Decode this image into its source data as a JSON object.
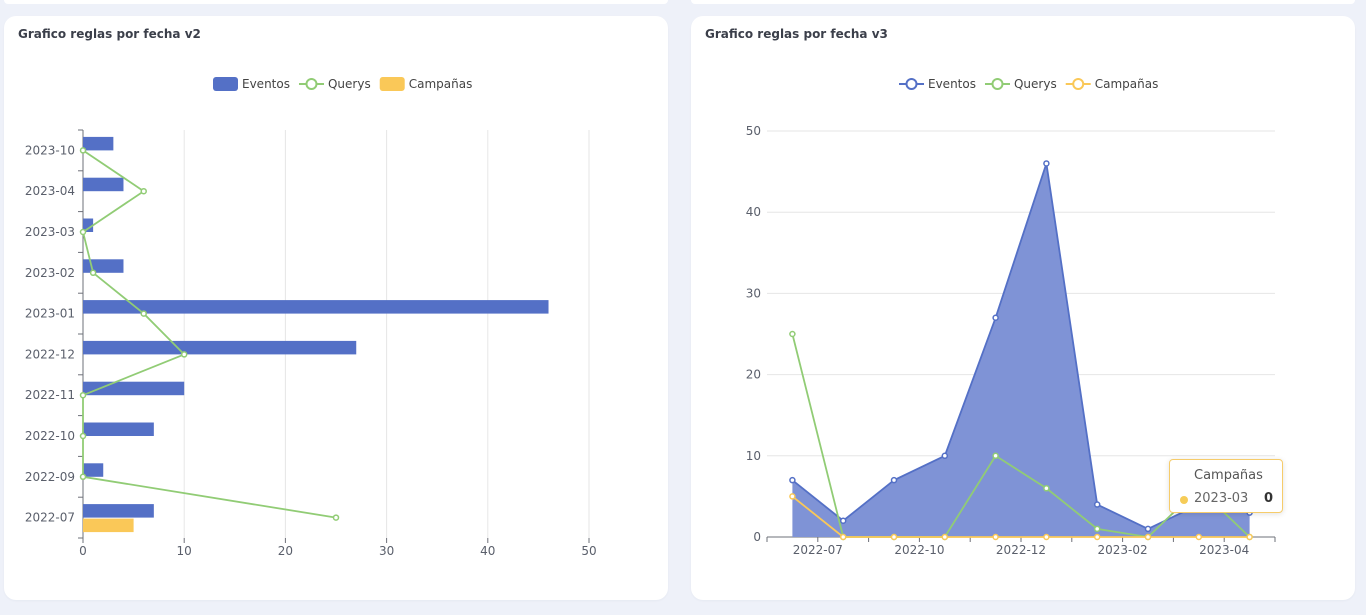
{
  "colors": {
    "eventos": "#5470c6",
    "eventos_area": "#7f93d6",
    "querys": "#91cc75",
    "campanas": "#fac858",
    "grid": "#e6e6e6",
    "axis": "#6e7079"
  },
  "chart_data": [
    {
      "type": "bar",
      "title": "Grafico reglas por fecha v2",
      "orientation": "horizontal",
      "categories": [
        "2022-07",
        "2022-09",
        "2022-10",
        "2022-11",
        "2022-12",
        "2023-01",
        "2023-02",
        "2023-03",
        "2023-04",
        "2023-10"
      ],
      "legend": [
        "Eventos",
        "Querys",
        "Campañas"
      ],
      "series": [
        {
          "name": "Eventos",
          "kind": "bar",
          "values": [
            7,
            2,
            7,
            10,
            27,
            46,
            4,
            1,
            4,
            3
          ]
        },
        {
          "name": "Querys",
          "kind": "line",
          "values": [
            25,
            0,
            0,
            0,
            10,
            6,
            1,
            0,
            6,
            0
          ]
        },
        {
          "name": "Campañas",
          "kind": "bar",
          "values": [
            5,
            0,
            0,
            0,
            0,
            0,
            0,
            0,
            0,
            0
          ]
        }
      ],
      "x_ticks": [
        "0",
        "10",
        "20",
        "30",
        "40",
        "50"
      ],
      "xlim": [
        0,
        50
      ],
      "grid": true,
      "legend_position": "top-center"
    },
    {
      "type": "area",
      "title": "Grafico reglas por fecha v3",
      "categories": [
        "2022-07",
        "2022-09",
        "2022-10",
        "2022-11",
        "2022-12",
        "2023-01",
        "2023-02",
        "2023-03",
        "2023-04",
        "2023-10"
      ],
      "x_ticks": [
        "2022-07",
        "2022-10",
        "2022-12",
        "2023-02",
        "2023-04"
      ],
      "y_ticks": [
        "0",
        "10",
        "20",
        "30",
        "40",
        "50"
      ],
      "ylim": [
        0,
        50
      ],
      "legend": [
        "Eventos",
        "Querys",
        "Campañas"
      ],
      "series": [
        {
          "name": "Eventos",
          "kind": "area",
          "values": [
            7,
            2,
            7,
            10,
            27,
            46,
            4,
            1,
            4,
            3
          ]
        },
        {
          "name": "Querys",
          "kind": "line",
          "values": [
            25,
            0,
            0,
            0,
            10,
            6,
            1,
            0,
            6,
            0
          ]
        },
        {
          "name": "Campañas",
          "kind": "line",
          "values": [
            5,
            0,
            0,
            0,
            0,
            0,
            0,
            0,
            0,
            0
          ]
        }
      ],
      "grid": true,
      "legend_position": "top-center",
      "tooltip": {
        "title": "Campañas",
        "label": "2023-03",
        "value": "0"
      }
    }
  ]
}
